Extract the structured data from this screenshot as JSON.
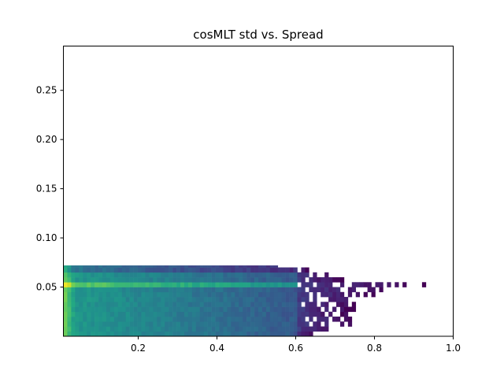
{
  "chart_data": {
    "type": "heatmap",
    "title": "cosMLT std vs. Spread",
    "xlabel": "",
    "ylabel": "",
    "xlim": [
      0.01,
      1.0
    ],
    "ylim": [
      0.0,
      0.295
    ],
    "x_ticks": [
      0.2,
      0.4,
      0.6,
      0.8,
      1.0
    ],
    "x_tick_labels": [
      "0.2",
      "0.4",
      "0.6",
      "0.8",
      "1.0"
    ],
    "y_ticks": [
      0.05,
      0.1,
      0.15,
      0.2,
      0.25
    ],
    "y_tick_labels": [
      "0.05",
      "0.10",
      "0.15",
      "0.20",
      "0.25"
    ],
    "colormap": "viridis",
    "grid": false,
    "bins": {
      "x_bins": 100,
      "y_bins": 15,
      "y_step": 0.005
    },
    "density_profile": {
      "max_x_by_y_band": [
        {
          "y_range": [
            0.0,
            0.005
          ],
          "x_max": 0.66
        },
        {
          "y_range": [
            0.005,
            0.01
          ],
          "x_max": 0.72
        },
        {
          "y_range": [
            0.01,
            0.015
          ],
          "x_max": 0.75
        },
        {
          "y_range": [
            0.015,
            0.02
          ],
          "x_max": 0.79
        },
        {
          "y_range": [
            0.02,
            0.025
          ],
          "x_max": 0.74
        },
        {
          "y_range": [
            0.025,
            0.03
          ],
          "x_max": 0.75
        },
        {
          "y_range": [
            0.03,
            0.035
          ],
          "x_max": 0.76
        },
        {
          "y_range": [
            0.035,
            0.04
          ],
          "x_max": 0.78
        },
        {
          "y_range": [
            0.04,
            0.045
          ],
          "x_max": 0.8
        },
        {
          "y_range": [
            0.045,
            0.05
          ],
          "x_max": 0.84
        },
        {
          "y_range": [
            0.05,
            0.055
          ],
          "x_max": 0.93
        },
        {
          "y_range": [
            0.055,
            0.06
          ],
          "x_max": 0.72
        },
        {
          "y_range": [
            0.06,
            0.065
          ],
          "x_max": 0.69
        },
        {
          "y_range": [
            0.065,
            0.07
          ],
          "x_max": 0.63
        },
        {
          "y_range": [
            0.07,
            0.072
          ],
          "x_max": 0.55
        }
      ],
      "peak_band": [
        0.05,
        0.055
      ],
      "peak_x": [
        0.01,
        0.04
      ]
    }
  }
}
